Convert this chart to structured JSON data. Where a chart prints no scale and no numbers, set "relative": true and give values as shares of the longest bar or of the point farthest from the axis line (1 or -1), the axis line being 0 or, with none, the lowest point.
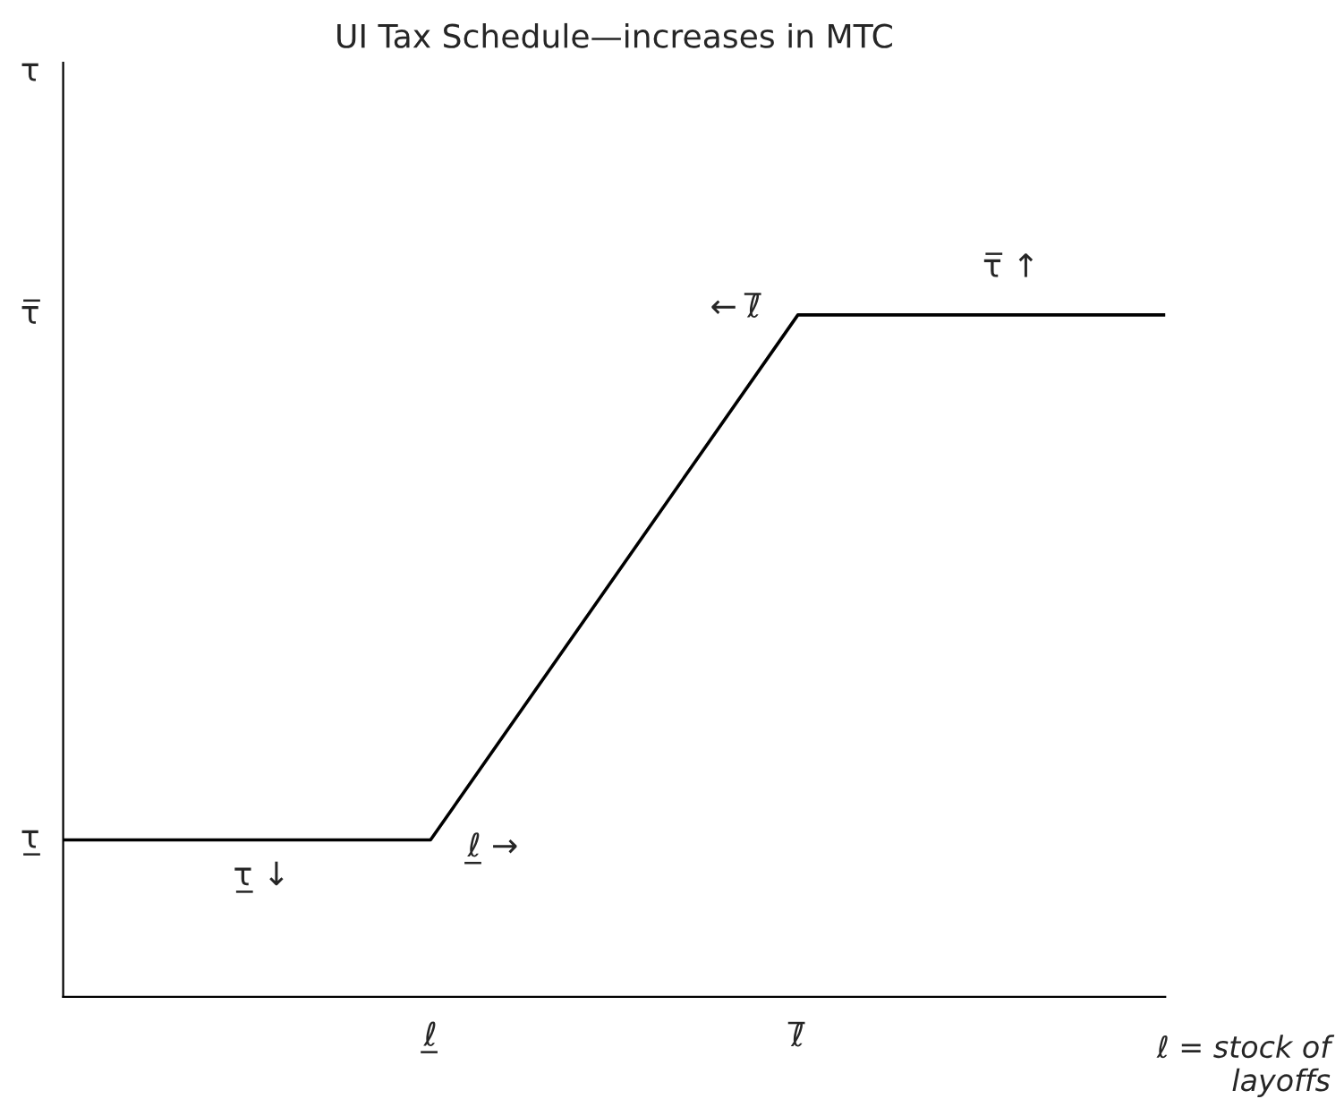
{
  "chart_data": {
    "type": "line",
    "title": "UI Tax Schedule—increases in MTC",
    "relative": true,
    "categories": [
      null,
      "ℓ̲",
      "ℓ̅",
      null
    ],
    "series": [
      {
        "color": "#000000",
        "values": [
          0.23,
          0.23,
          1,
          1
        ]
      }
    ],
    "xlabel": "ℓ = stock of\nlayoffs",
    "annotations": [
      "τ̅",
      "τ̲",
      "τ̲ ↓",
      "ℓ̲ →",
      "← ℓ̅",
      "τ̅ ↑",
      "τ"
    ],
    "legend": false,
    "marker": "none",
    "line_style": "solid"
  }
}
